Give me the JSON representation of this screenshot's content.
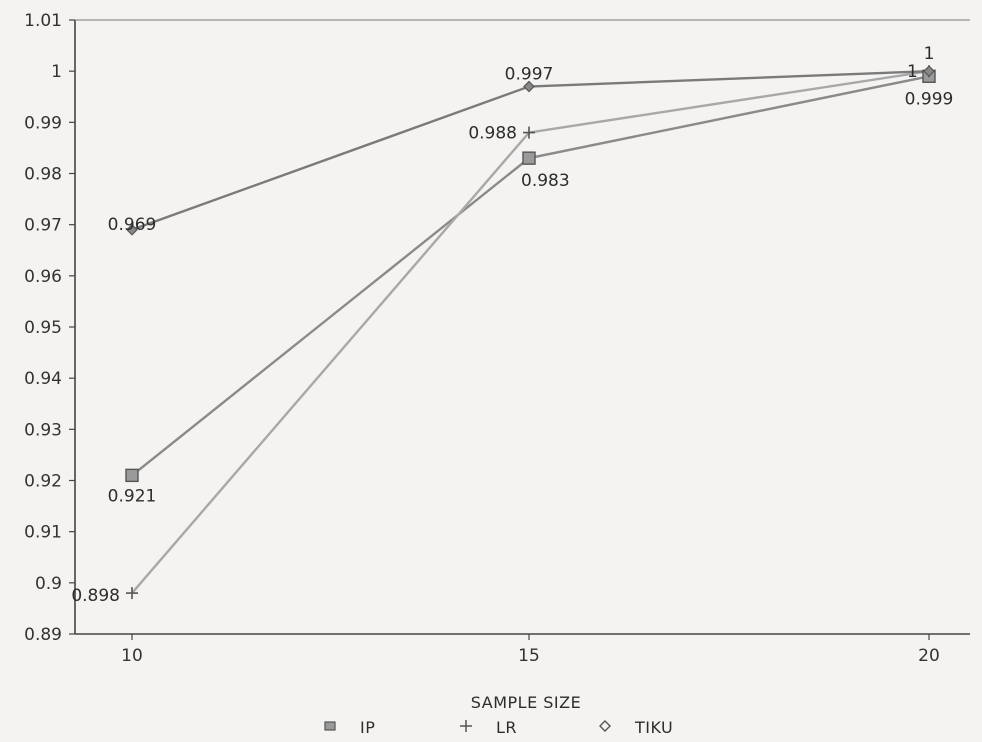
{
  "chart_data": {
    "type": "line",
    "title": "",
    "xlabel": "SAMPLE SIZE",
    "ylabel": "",
    "x": [
      10,
      15,
      20
    ],
    "x_tick_labels": [
      "10",
      "15",
      "20"
    ],
    "ylim": [
      0.89,
      1.01
    ],
    "y_tick_labels": [
      "1.01",
      "1",
      "0.99",
      "0.98",
      "0.97",
      "0.96",
      "0.95",
      "0.94",
      "0.93",
      "0.92",
      "0.91",
      "0.9",
      "0.89"
    ],
    "grid": false,
    "legend_position": "bottom",
    "series": [
      {
        "name": "IP",
        "marker": "square",
        "color": "#8a8a8a",
        "values": [
          0.921,
          0.983,
          0.999
        ],
        "labels": [
          "0.921",
          "0.983",
          "0.999"
        ]
      },
      {
        "name": "LR",
        "marker": "plus",
        "color": "#a8a8a8",
        "values": [
          0.898,
          0.988,
          1
        ],
        "labels": [
          "0.898",
          "0.988",
          "1"
        ]
      },
      {
        "name": "TIKU",
        "marker": "diamond",
        "color": "#7a7a7a",
        "values": [
          0.969,
          0.997,
          1
        ],
        "labels": [
          "0.969",
          "0.997",
          "1"
        ]
      }
    ]
  }
}
